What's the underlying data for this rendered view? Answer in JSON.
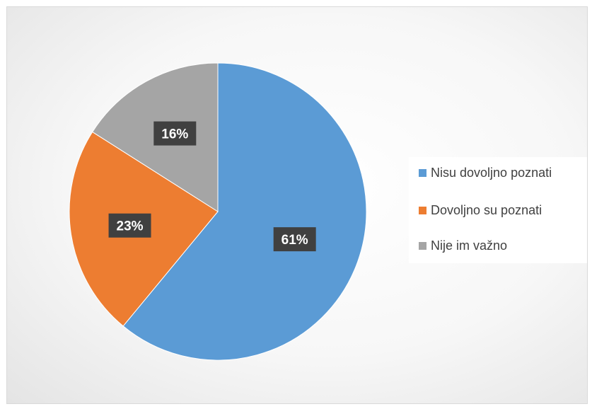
{
  "chart_data": {
    "type": "pie",
    "title": "",
    "categories": [
      "Nisu dovoljno poznati",
      "Dovoljno su poznati",
      "Nije im važno"
    ],
    "values": [
      61,
      23,
      16
    ],
    "data_labels": [
      "61%",
      "23%",
      "16%"
    ],
    "colors": [
      "#5B9BD5",
      "#ED7D31",
      "#A5A5A5"
    ],
    "start_angle_deg": 0,
    "direction": "clockwise",
    "legend_position": "right"
  }
}
